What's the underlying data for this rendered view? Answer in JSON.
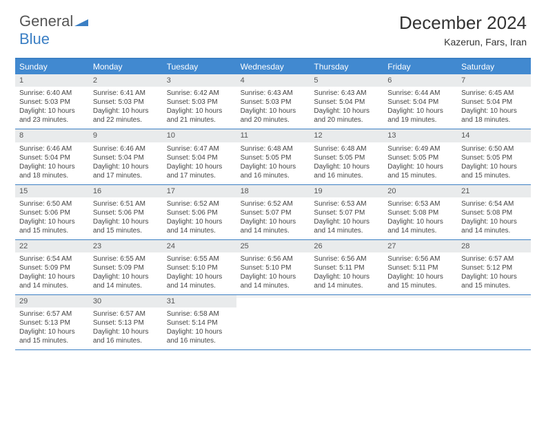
{
  "logo": {
    "text_a": "General",
    "text_b": "Blue"
  },
  "title": "December 2024",
  "location": "Kazerun, Fars, Iran",
  "colors": {
    "header_bg": "#4189d0",
    "header_text": "#ffffff",
    "border": "#3b7fc4",
    "daynum_bg": "#e9ebec",
    "logo_blue": "#3b7fc4",
    "text": "#333333"
  },
  "weekdays": [
    "Sunday",
    "Monday",
    "Tuesday",
    "Wednesday",
    "Thursday",
    "Friday",
    "Saturday"
  ],
  "weeks": [
    [
      {
        "n": "1",
        "sunrise": "Sunrise: 6:40 AM",
        "sunset": "Sunset: 5:03 PM",
        "daylight": "Daylight: 10 hours and 23 minutes."
      },
      {
        "n": "2",
        "sunrise": "Sunrise: 6:41 AM",
        "sunset": "Sunset: 5:03 PM",
        "daylight": "Daylight: 10 hours and 22 minutes."
      },
      {
        "n": "3",
        "sunrise": "Sunrise: 6:42 AM",
        "sunset": "Sunset: 5:03 PM",
        "daylight": "Daylight: 10 hours and 21 minutes."
      },
      {
        "n": "4",
        "sunrise": "Sunrise: 6:43 AM",
        "sunset": "Sunset: 5:03 PM",
        "daylight": "Daylight: 10 hours and 20 minutes."
      },
      {
        "n": "5",
        "sunrise": "Sunrise: 6:43 AM",
        "sunset": "Sunset: 5:04 PM",
        "daylight": "Daylight: 10 hours and 20 minutes."
      },
      {
        "n": "6",
        "sunrise": "Sunrise: 6:44 AM",
        "sunset": "Sunset: 5:04 PM",
        "daylight": "Daylight: 10 hours and 19 minutes."
      },
      {
        "n": "7",
        "sunrise": "Sunrise: 6:45 AM",
        "sunset": "Sunset: 5:04 PM",
        "daylight": "Daylight: 10 hours and 18 minutes."
      }
    ],
    [
      {
        "n": "8",
        "sunrise": "Sunrise: 6:46 AM",
        "sunset": "Sunset: 5:04 PM",
        "daylight": "Daylight: 10 hours and 18 minutes."
      },
      {
        "n": "9",
        "sunrise": "Sunrise: 6:46 AM",
        "sunset": "Sunset: 5:04 PM",
        "daylight": "Daylight: 10 hours and 17 minutes."
      },
      {
        "n": "10",
        "sunrise": "Sunrise: 6:47 AM",
        "sunset": "Sunset: 5:04 PM",
        "daylight": "Daylight: 10 hours and 17 minutes."
      },
      {
        "n": "11",
        "sunrise": "Sunrise: 6:48 AM",
        "sunset": "Sunset: 5:05 PM",
        "daylight": "Daylight: 10 hours and 16 minutes."
      },
      {
        "n": "12",
        "sunrise": "Sunrise: 6:48 AM",
        "sunset": "Sunset: 5:05 PM",
        "daylight": "Daylight: 10 hours and 16 minutes."
      },
      {
        "n": "13",
        "sunrise": "Sunrise: 6:49 AM",
        "sunset": "Sunset: 5:05 PM",
        "daylight": "Daylight: 10 hours and 15 minutes."
      },
      {
        "n": "14",
        "sunrise": "Sunrise: 6:50 AM",
        "sunset": "Sunset: 5:05 PM",
        "daylight": "Daylight: 10 hours and 15 minutes."
      }
    ],
    [
      {
        "n": "15",
        "sunrise": "Sunrise: 6:50 AM",
        "sunset": "Sunset: 5:06 PM",
        "daylight": "Daylight: 10 hours and 15 minutes."
      },
      {
        "n": "16",
        "sunrise": "Sunrise: 6:51 AM",
        "sunset": "Sunset: 5:06 PM",
        "daylight": "Daylight: 10 hours and 15 minutes."
      },
      {
        "n": "17",
        "sunrise": "Sunrise: 6:52 AM",
        "sunset": "Sunset: 5:06 PM",
        "daylight": "Daylight: 10 hours and 14 minutes."
      },
      {
        "n": "18",
        "sunrise": "Sunrise: 6:52 AM",
        "sunset": "Sunset: 5:07 PM",
        "daylight": "Daylight: 10 hours and 14 minutes."
      },
      {
        "n": "19",
        "sunrise": "Sunrise: 6:53 AM",
        "sunset": "Sunset: 5:07 PM",
        "daylight": "Daylight: 10 hours and 14 minutes."
      },
      {
        "n": "20",
        "sunrise": "Sunrise: 6:53 AM",
        "sunset": "Sunset: 5:08 PM",
        "daylight": "Daylight: 10 hours and 14 minutes."
      },
      {
        "n": "21",
        "sunrise": "Sunrise: 6:54 AM",
        "sunset": "Sunset: 5:08 PM",
        "daylight": "Daylight: 10 hours and 14 minutes."
      }
    ],
    [
      {
        "n": "22",
        "sunrise": "Sunrise: 6:54 AM",
        "sunset": "Sunset: 5:09 PM",
        "daylight": "Daylight: 10 hours and 14 minutes."
      },
      {
        "n": "23",
        "sunrise": "Sunrise: 6:55 AM",
        "sunset": "Sunset: 5:09 PM",
        "daylight": "Daylight: 10 hours and 14 minutes."
      },
      {
        "n": "24",
        "sunrise": "Sunrise: 6:55 AM",
        "sunset": "Sunset: 5:10 PM",
        "daylight": "Daylight: 10 hours and 14 minutes."
      },
      {
        "n": "25",
        "sunrise": "Sunrise: 6:56 AM",
        "sunset": "Sunset: 5:10 PM",
        "daylight": "Daylight: 10 hours and 14 minutes."
      },
      {
        "n": "26",
        "sunrise": "Sunrise: 6:56 AM",
        "sunset": "Sunset: 5:11 PM",
        "daylight": "Daylight: 10 hours and 14 minutes."
      },
      {
        "n": "27",
        "sunrise": "Sunrise: 6:56 AM",
        "sunset": "Sunset: 5:11 PM",
        "daylight": "Daylight: 10 hours and 15 minutes."
      },
      {
        "n": "28",
        "sunrise": "Sunrise: 6:57 AM",
        "sunset": "Sunset: 5:12 PM",
        "daylight": "Daylight: 10 hours and 15 minutes."
      }
    ],
    [
      {
        "n": "29",
        "sunrise": "Sunrise: 6:57 AM",
        "sunset": "Sunset: 5:13 PM",
        "daylight": "Daylight: 10 hours and 15 minutes."
      },
      {
        "n": "30",
        "sunrise": "Sunrise: 6:57 AM",
        "sunset": "Sunset: 5:13 PM",
        "daylight": "Daylight: 10 hours and 16 minutes."
      },
      {
        "n": "31",
        "sunrise": "Sunrise: 6:58 AM",
        "sunset": "Sunset: 5:14 PM",
        "daylight": "Daylight: 10 hours and 16 minutes."
      },
      {
        "n": "",
        "sunrise": "",
        "sunset": "",
        "daylight": ""
      },
      {
        "n": "",
        "sunrise": "",
        "sunset": "",
        "daylight": ""
      },
      {
        "n": "",
        "sunrise": "",
        "sunset": "",
        "daylight": ""
      },
      {
        "n": "",
        "sunrise": "",
        "sunset": "",
        "daylight": ""
      }
    ]
  ]
}
